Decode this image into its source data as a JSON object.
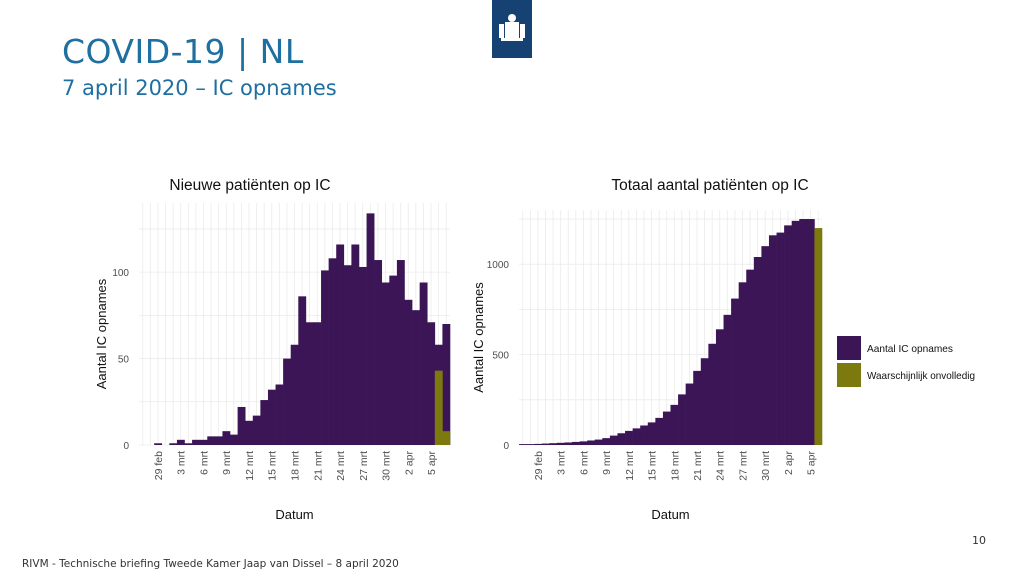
{
  "slide": {
    "title": "COVID-19 | NL",
    "subtitle": "7 april 2020 – IC opnames",
    "footer": "RIVM - Technische briefing Tweede Kamer Jaap van Dissel – 8 april 2020",
    "page_number": "10"
  },
  "colors": {
    "primary": "#3b1556",
    "incomplete": "#7c7a0f",
    "title_blue": "#1f6fa0",
    "logo_blue": "#154273"
  },
  "legend": [
    {
      "label": "Aantal IC opnames",
      "color": "#3b1556"
    },
    {
      "label": "Waarschijnlijk onvolledig",
      "color": "#7c7a0f"
    }
  ],
  "chart_data": [
    {
      "type": "bar",
      "title": "Nieuwe patiënten op IC",
      "xlabel": "Datum",
      "ylabel": "Aantal IC opnames",
      "ylim": [
        0,
        140
      ],
      "yticks": [
        0,
        50,
        100
      ],
      "xticks": [
        "29 feb",
        "3 mrt",
        "6 mrt",
        "9 mrt",
        "12 mrt",
        "15 mrt",
        "18 mrt",
        "21 mrt",
        "24 mrt",
        "27 mrt",
        "30 mrt",
        "2 apr",
        "5 apr"
      ],
      "categories": [
        "27 feb",
        "28 feb",
        "29 feb",
        "1 mrt",
        "2 mrt",
        "3 mrt",
        "4 mrt",
        "5 mrt",
        "6 mrt",
        "7 mrt",
        "8 mrt",
        "9 mrt",
        "10 mrt",
        "11 mrt",
        "12 mrt",
        "13 mrt",
        "14 mrt",
        "15 mrt",
        "16 mrt",
        "17 mrt",
        "18 mrt",
        "19 mrt",
        "20 mrt",
        "21 mrt",
        "22 mrt",
        "23 mrt",
        "24 mrt",
        "25 mrt",
        "26 mrt",
        "27 mrt",
        "28 mrt",
        "29 mrt",
        "30 mrt",
        "31 mrt",
        "1 apr",
        "2 apr",
        "3 apr",
        "4 apr",
        "5 apr",
        "6 apr",
        "7 apr"
      ],
      "series": [
        {
          "name": "Aantal IC opnames",
          "values": [
            0,
            0,
            1,
            0,
            1,
            3,
            1,
            3,
            3,
            5,
            5,
            8,
            6,
            22,
            14,
            17,
            26,
            32,
            35,
            50,
            58,
            86,
            71,
            71,
            101,
            108,
            116,
            104,
            116,
            103,
            134,
            107,
            94,
            98,
            107,
            84,
            78,
            94,
            71,
            58,
            70
          ]
        },
        {
          "name": "Waarschijnlijk onvolledig",
          "values": [
            0,
            0,
            0,
            0,
            0,
            0,
            0,
            0,
            0,
            0,
            0,
            0,
            0,
            0,
            0,
            0,
            0,
            0,
            0,
            0,
            0,
            0,
            0,
            0,
            0,
            0,
            0,
            0,
            0,
            0,
            0,
            0,
            0,
            0,
            0,
            0,
            0,
            0,
            0,
            43,
            8
          ]
        }
      ],
      "grid": true
    },
    {
      "type": "bar",
      "title": "Totaal aantal patiënten op IC",
      "xlabel": "Datum",
      "ylabel": "Aantal IC opnames",
      "ylim": [
        0,
        1300
      ],
      "yticks": [
        0,
        500,
        1000
      ],
      "xticks": [
        "29 feb",
        "3 mrt",
        "6 mrt",
        "9 mrt",
        "12 mrt",
        "15 mrt",
        "18 mrt",
        "21 mrt",
        "24 mrt",
        "27 mrt",
        "30 mrt",
        "2 apr",
        "5 apr"
      ],
      "categories": [
        "27 feb",
        "28 feb",
        "29 feb",
        "1 mrt",
        "2 mrt",
        "3 mrt",
        "4 mrt",
        "5 mrt",
        "6 mrt",
        "7 mrt",
        "8 mrt",
        "9 mrt",
        "10 mrt",
        "11 mrt",
        "12 mrt",
        "13 mrt",
        "14 mrt",
        "15 mrt",
        "16 mrt",
        "17 mrt",
        "18 mrt",
        "19 mrt",
        "20 mrt",
        "21 mrt",
        "22 mrt",
        "23 mrt",
        "24 mrt",
        "25 mrt",
        "26 mrt",
        "27 mrt",
        "28 mrt",
        "29 mrt",
        "30 mrt",
        "31 mrt",
        "1 apr",
        "2 apr",
        "3 apr",
        "4 apr",
        "5 apr",
        "6 apr"
      ],
      "series": [
        {
          "name": "Aantal IC opnames",
          "values": [
            5,
            5,
            6,
            8,
            10,
            12,
            14,
            17,
            20,
            25,
            30,
            38,
            52,
            65,
            78,
            92,
            108,
            125,
            150,
            185,
            222,
            280,
            340,
            410,
            480,
            560,
            640,
            720,
            810,
            900,
            970,
            1040,
            1100,
            1160,
            1175,
            1215,
            1240,
            1250,
            1250,
            0
          ]
        },
        {
          "name": "Waarschijnlijk onvolledig",
          "values": [
            0,
            0,
            0,
            0,
            0,
            0,
            0,
            0,
            0,
            0,
            0,
            0,
            0,
            0,
            0,
            0,
            0,
            0,
            0,
            0,
            0,
            0,
            0,
            0,
            0,
            0,
            0,
            0,
            0,
            0,
            0,
            0,
            0,
            0,
            0,
            0,
            0,
            0,
            0,
            1200
          ]
        }
      ],
      "grid": true,
      "legend_position": "right"
    }
  ]
}
